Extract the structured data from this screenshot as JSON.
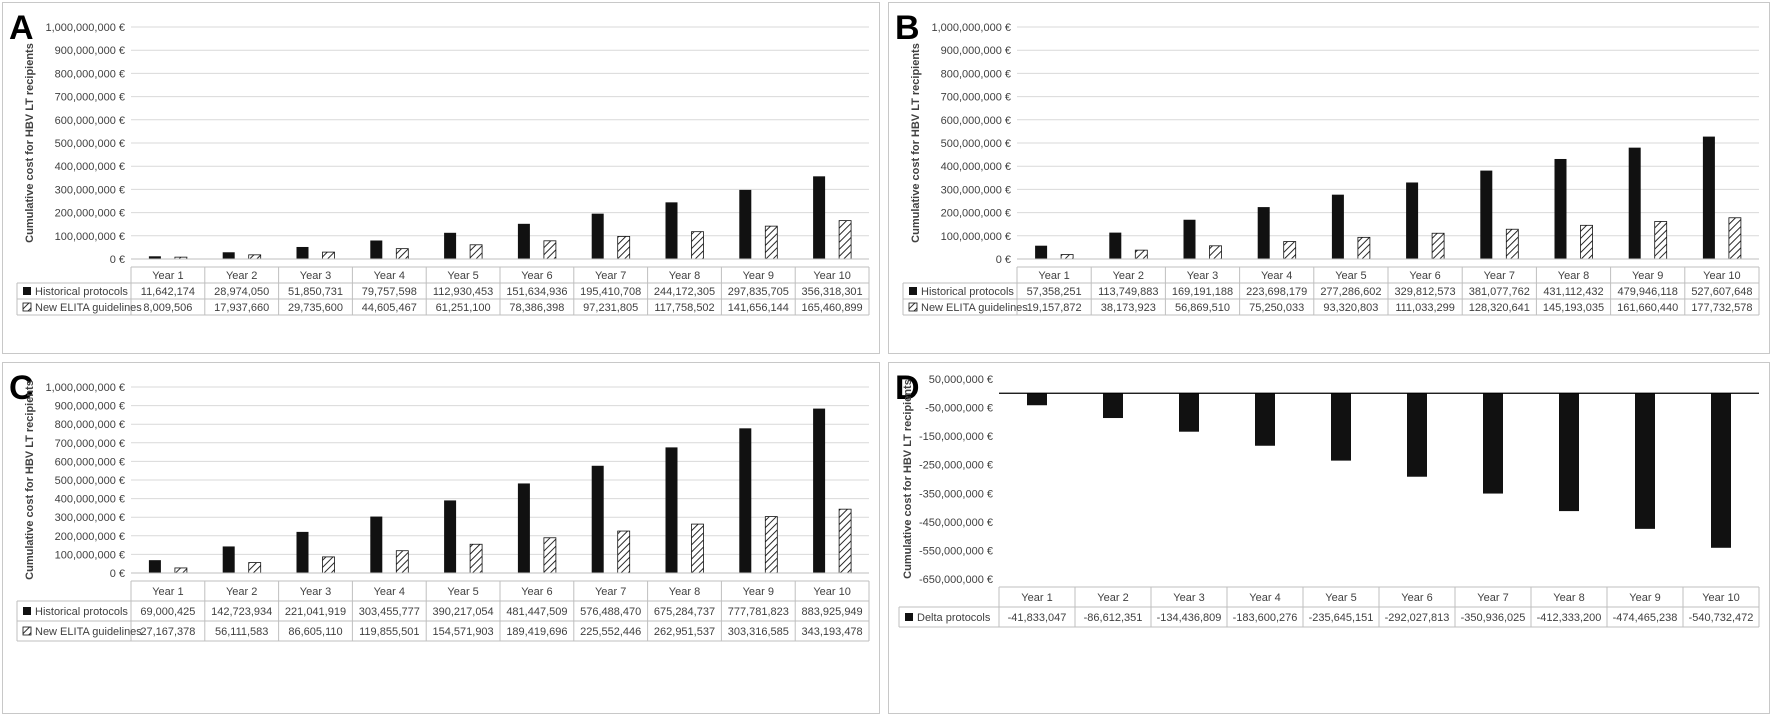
{
  "colors": {
    "historical": "#111111",
    "grid": "#d9d9d9",
    "axis": "#000000"
  },
  "chart_data": [
    {
      "panel": "A",
      "type": "bar",
      "ylabel": "Cumulative cost for HBV LT recipients",
      "ylim": [
        0,
        1000000000
      ],
      "yticks": [
        0,
        100000000,
        200000000,
        300000000,
        400000000,
        500000000,
        600000000,
        700000000,
        800000000,
        900000000,
        1000000000
      ],
      "ytick_labels": [
        "0 €",
        "100,000,000 €",
        "200,000,000 €",
        "300,000,000 €",
        "400,000,000 €",
        "500,000,000 €",
        "600,000,000 €",
        "700,000,000 €",
        "800,000,000 €",
        "900,000,000 €",
        "1,000,000,000 €"
      ],
      "categories": [
        "Year 1",
        "Year 2",
        "Year 3",
        "Year 4",
        "Year 5",
        "Year 6",
        "Year 7",
        "Year 8",
        "Year 9",
        "Year 10"
      ],
      "series": [
        {
          "name": "Historical protocols",
          "style": "solid",
          "values": [
            11642174,
            28974050,
            51850731,
            79757598,
            112930453,
            151634936,
            195410708,
            244172305,
            297835705,
            356318301
          ],
          "labels": [
            "11,642,174",
            "28,974,050",
            "51,850,731",
            "79,757,598",
            "112,930,453",
            "151,634,936",
            "195,410,708",
            "244,172,305",
            "297,835,705",
            "356,318,301"
          ]
        },
        {
          "name": "New ELITA guidelines",
          "style": "hatched",
          "values": [
            8009506,
            17937660,
            29735600,
            44605467,
            61251100,
            78386398,
            97231805,
            117758502,
            141656144,
            165460899
          ],
          "labels": [
            "8,009,506",
            "17,937,660",
            "29,735,600",
            "44,605,467",
            "61,251,100",
            "78,386,398",
            "97,231,805",
            "117,758,502",
            "141,656,144",
            "165,460,899"
          ]
        }
      ]
    },
    {
      "panel": "B",
      "type": "bar",
      "ylabel": "Cumulative cost for HBV LT recipients",
      "ylim": [
        0,
        1000000000
      ],
      "yticks": [
        0,
        100000000,
        200000000,
        300000000,
        400000000,
        500000000,
        600000000,
        700000000,
        800000000,
        900000000,
        1000000000
      ],
      "ytick_labels": [
        "0 €",
        "100,000,000 €",
        "200,000,000 €",
        "300,000,000 €",
        "400,000,000 €",
        "500,000,000 €",
        "600,000,000 €",
        "700,000,000 €",
        "800,000,000 €",
        "900,000,000 €",
        "1,000,000,000 €"
      ],
      "categories": [
        "Year 1",
        "Year 2",
        "Year 3",
        "Year 4",
        "Year 5",
        "Year 6",
        "Year 7",
        "Year 8",
        "Year 9",
        "Year 10"
      ],
      "series": [
        {
          "name": "Historical protocols",
          "style": "solid",
          "values": [
            57358251,
            113749883,
            169191188,
            223698179,
            277286602,
            329812573,
            381077762,
            431112432,
            479946118,
            527607648
          ],
          "labels": [
            "57,358,251",
            "113,749,883",
            "169,191,188",
            "223,698,179",
            "277,286,602",
            "329,812,573",
            "381,077,762",
            "431,112,432",
            "479,946,118",
            "527,607,648"
          ]
        },
        {
          "name": "New ELITA guidelines",
          "style": "hatched",
          "values": [
            19157872,
            38173923,
            56869510,
            75250033,
            93320803,
            111033299,
            128320641,
            145193035,
            161660440,
            177732578
          ],
          "labels": [
            "19,157,872",
            "38,173,923",
            "56,869,510",
            "75,250,033",
            "93,320,803",
            "111,033,299",
            "128,320,641",
            "145,193,035",
            "161,660,440",
            "177,732,578"
          ]
        }
      ]
    },
    {
      "panel": "C",
      "type": "bar",
      "ylabel": "Cumulative cost for HBV LT recipients",
      "ylim": [
        0,
        1000000000
      ],
      "yticks": [
        0,
        100000000,
        200000000,
        300000000,
        400000000,
        500000000,
        600000000,
        700000000,
        800000000,
        900000000,
        1000000000
      ],
      "ytick_labels": [
        "0 €",
        "100,000,000 €",
        "200,000,000 €",
        "300,000,000 €",
        "400,000,000 €",
        "500,000,000 €",
        "600,000,000 €",
        "700,000,000 €",
        "800,000,000 €",
        "900,000,000 €",
        "1,000,000,000 €"
      ],
      "categories": [
        "Year 1",
        "Year 2",
        "Year 3",
        "Year 4",
        "Year 5",
        "Year 6",
        "Year 7",
        "Year 8",
        "Year 9",
        "Year 10"
      ],
      "series": [
        {
          "name": "Historical protocols",
          "style": "solid",
          "values": [
            69000425,
            142723934,
            221041919,
            303455777,
            390217054,
            481447509,
            576488470,
            675284737,
            777781823,
            883925949
          ],
          "labels": [
            "69,000,425",
            "142,723,934",
            "221,041,919",
            "303,455,777",
            "390,217,054",
            "481,447,509",
            "576,488,470",
            "675,284,737",
            "777,781,823",
            "883,925,949"
          ]
        },
        {
          "name": "New ELITA guidelines",
          "style": "hatched",
          "values": [
            27167378,
            56111583,
            86605110,
            119855501,
            154571903,
            189419696,
            225552446,
            262951537,
            303316585,
            343193478
          ],
          "labels": [
            "27,167,378",
            "56,111,583",
            "86,605,110",
            "119,855,501",
            "154,571,903",
            "189,419,696",
            "225,552,446",
            "262,951,537",
            "303,316,585",
            "343,193,478"
          ]
        }
      ]
    },
    {
      "panel": "D",
      "type": "bar",
      "ylabel": "Cumulative cost for HBV LT recipients",
      "ylim": [
        -650000000,
        50000000
      ],
      "yticks": [
        -650000000,
        -550000000,
        -450000000,
        -350000000,
        -250000000,
        -150000000,
        -50000000,
        50000000
      ],
      "ytick_labels": [
        "-650,000,000 €",
        "-550,000,000 €",
        "-450,000,000 €",
        "-350,000,000 €",
        "-250,000,000 €",
        "-150,000,000 €",
        "-50,000,000 €",
        "50,000,000 €"
      ],
      "categories": [
        "Year 1",
        "Year 2",
        "Year 3",
        "Year 4",
        "Year 5",
        "Year 6",
        "Year 7",
        "Year 8",
        "Year 9",
        "Year 10"
      ],
      "series": [
        {
          "name": "Delta protocols",
          "style": "solid",
          "values": [
            -41833047,
            -86612351,
            -134436809,
            -183600276,
            -235645151,
            -292027813,
            -350936025,
            -412333200,
            -474465238,
            -540732472
          ],
          "labels": [
            "-41,833,047",
            "-86,612,351",
            "-134,436,809",
            "-183,600,276",
            "-235,645,151",
            "-292,027,813",
            "-350,936,025",
            "-412,333,200",
            "-474,465,238",
            "-540,732,472"
          ]
        }
      ]
    }
  ]
}
